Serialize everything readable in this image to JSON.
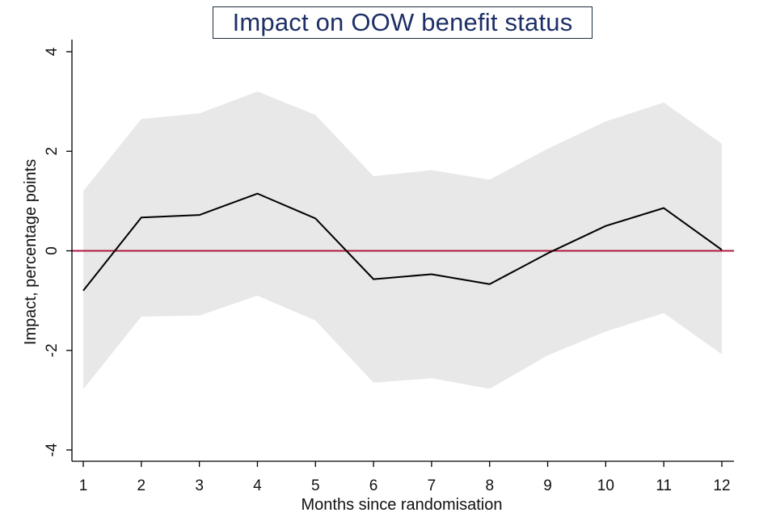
{
  "chart_data": {
    "type": "line",
    "title": "Impact on OOW benefit status",
    "xlabel": "Months since randomisation",
    "ylabel": "Impact, percentage points",
    "x": [
      1,
      2,
      3,
      4,
      5,
      6,
      7,
      8,
      9,
      10,
      11,
      12
    ],
    "xlim": [
      1,
      12
    ],
    "ylim": [
      -4,
      4
    ],
    "xticks": [
      "1",
      "2",
      "3",
      "4",
      "5",
      "6",
      "7",
      "8",
      "9",
      "10",
      "11",
      "12"
    ],
    "yticks": [
      {
        "value": 4,
        "label": "4"
      },
      {
        "value": 2,
        "label": "2"
      },
      {
        "value": 0,
        "label": "0"
      },
      {
        "value": -2,
        "label": "-2"
      },
      {
        "value": -4,
        "label": "-4"
      }
    ],
    "grid": false,
    "series": [
      {
        "name": "Impact",
        "values": [
          -0.8,
          0.67,
          0.72,
          1.15,
          0.65,
          -0.57,
          -0.47,
          -0.67,
          -0.05,
          0.5,
          0.86,
          0.02
        ]
      },
      {
        "name": "Upper confidence bound",
        "values": [
          1.2,
          2.65,
          2.76,
          3.2,
          2.73,
          1.5,
          1.62,
          1.43,
          2.05,
          2.6,
          2.98,
          2.15
        ]
      },
      {
        "name": "Lower confidence bound",
        "values": [
          -2.78,
          -1.32,
          -1.3,
          -0.9,
          -1.4,
          -2.65,
          -2.56,
          -2.77,
          -2.1,
          -1.62,
          -1.25,
          -2.08
        ]
      }
    ],
    "reference_line": {
      "value": 0
    },
    "colors": {
      "band": "#e8e8e8",
      "line": "#000000",
      "reference": "#b01840",
      "axis": "#000000"
    }
  }
}
